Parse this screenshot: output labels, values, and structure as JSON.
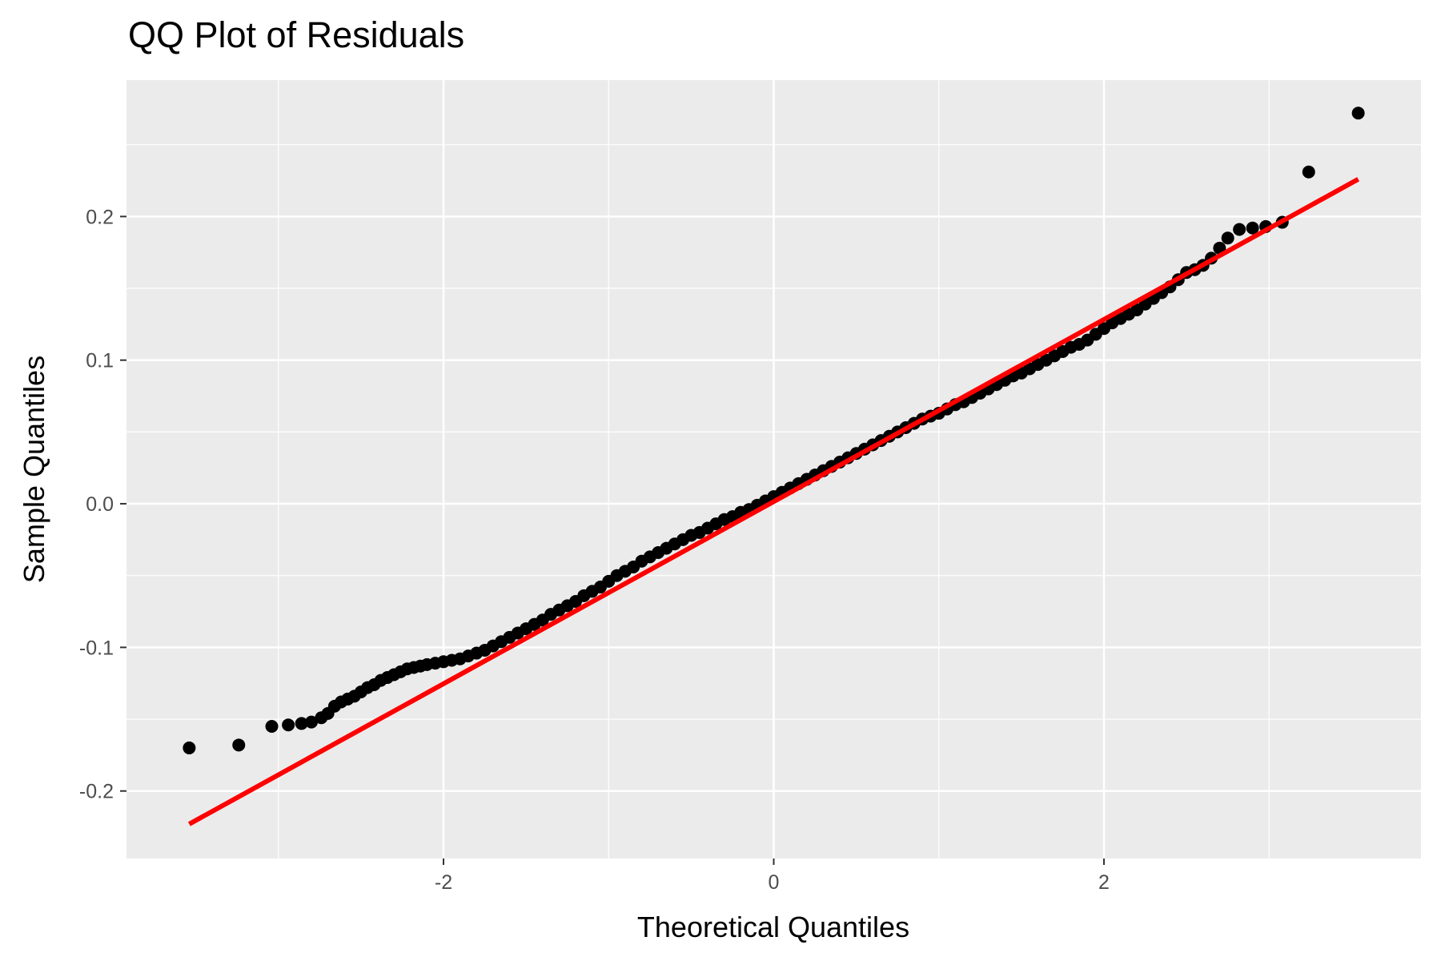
{
  "chart_data": {
    "type": "scatter",
    "title": "QQ Plot of Residuals",
    "xlabel": "Theoretical Quantiles",
    "ylabel": "Sample Quantiles",
    "xlim": [
      -3.92,
      3.92
    ],
    "ylim": [
      -0.247,
      0.295
    ],
    "x_ticks": [
      -2,
      0,
      2
    ],
    "x_tick_labels": [
      "-2",
      "0",
      "2"
    ],
    "y_ticks": [
      -0.2,
      -0.1,
      0.0,
      0.1,
      0.2
    ],
    "y_tick_labels": [
      "-0.2",
      "-0.1",
      "0.0",
      "0.1",
      "0.2"
    ],
    "grid": true,
    "background": "#ebebeb",
    "point_color": "#000000",
    "line_color": "#ff0000",
    "reference_line": {
      "x": [
        -3.54,
        3.54
      ],
      "y": [
        -0.223,
        0.226
      ]
    },
    "series": [
      {
        "x": [
          -3.54,
          -3.24,
          -3.04,
          -2.94,
          -2.86,
          -2.8,
          -2.74,
          -2.7,
          -2.66,
          -2.62,
          -2.58,
          -2.54,
          -2.5,
          -2.46,
          -2.42,
          -2.38,
          -2.34,
          -2.3,
          -2.26,
          -2.22,
          -2.18,
          -2.14,
          -2.1,
          -2.05,
          -2.0,
          -1.95,
          -1.9,
          -1.85,
          -1.8,
          -1.75,
          -1.7,
          -1.65,
          -1.6,
          -1.55,
          -1.5,
          -1.45,
          -1.4,
          -1.35,
          -1.3,
          -1.25,
          -1.2,
          -1.15,
          -1.1,
          -1.05,
          -1.0,
          -0.95,
          -0.9,
          -0.85,
          -0.8,
          -0.75,
          -0.7,
          -0.65,
          -0.6,
          -0.55,
          -0.5,
          -0.45,
          -0.4,
          -0.35,
          -0.3,
          -0.25,
          -0.2,
          -0.15,
          -0.1,
          -0.05,
          0.0,
          0.05,
          0.1,
          0.15,
          0.2,
          0.25,
          0.3,
          0.35,
          0.4,
          0.45,
          0.5,
          0.55,
          0.6,
          0.65,
          0.7,
          0.75,
          0.8,
          0.85,
          0.9,
          0.95,
          1.0,
          1.05,
          1.1,
          1.15,
          1.2,
          1.25,
          1.3,
          1.35,
          1.4,
          1.45,
          1.5,
          1.55,
          1.6,
          1.65,
          1.7,
          1.75,
          1.8,
          1.85,
          1.9,
          1.95,
          2.0,
          2.05,
          2.1,
          2.15,
          2.2,
          2.25,
          2.3,
          2.35,
          2.4,
          2.45,
          2.5,
          2.55,
          2.6,
          2.65,
          2.7,
          2.75,
          2.82,
          2.9,
          2.98,
          3.08,
          3.24,
          3.54
        ],
        "y": [
          -0.17,
          -0.168,
          -0.155,
          -0.154,
          -0.153,
          -0.152,
          -0.149,
          -0.146,
          -0.141,
          -0.138,
          -0.136,
          -0.134,
          -0.131,
          -0.128,
          -0.126,
          -0.123,
          -0.121,
          -0.119,
          -0.117,
          -0.115,
          -0.114,
          -0.113,
          -0.112,
          -0.111,
          -0.11,
          -0.109,
          -0.108,
          -0.106,
          -0.104,
          -0.102,
          -0.099,
          -0.096,
          -0.093,
          -0.09,
          -0.087,
          -0.084,
          -0.081,
          -0.077,
          -0.074,
          -0.071,
          -0.068,
          -0.064,
          -0.061,
          -0.058,
          -0.054,
          -0.05,
          -0.047,
          -0.044,
          -0.04,
          -0.037,
          -0.034,
          -0.031,
          -0.028,
          -0.025,
          -0.022,
          -0.02,
          -0.017,
          -0.014,
          -0.011,
          -0.009,
          -0.006,
          -0.004,
          -0.001,
          0.002,
          0.005,
          0.008,
          0.011,
          0.014,
          0.017,
          0.02,
          0.023,
          0.026,
          0.029,
          0.032,
          0.035,
          0.038,
          0.041,
          0.044,
          0.047,
          0.05,
          0.053,
          0.056,
          0.059,
          0.061,
          0.063,
          0.066,
          0.069,
          0.071,
          0.074,
          0.077,
          0.08,
          0.083,
          0.086,
          0.089,
          0.091,
          0.094,
          0.097,
          0.1,
          0.103,
          0.106,
          0.109,
          0.111,
          0.114,
          0.118,
          0.122,
          0.126,
          0.129,
          0.132,
          0.135,
          0.139,
          0.143,
          0.147,
          0.151,
          0.156,
          0.161,
          0.163,
          0.166,
          0.171,
          0.178,
          0.185,
          0.191,
          0.192,
          0.193,
          0.196,
          0.231,
          0.272
        ]
      }
    ]
  }
}
